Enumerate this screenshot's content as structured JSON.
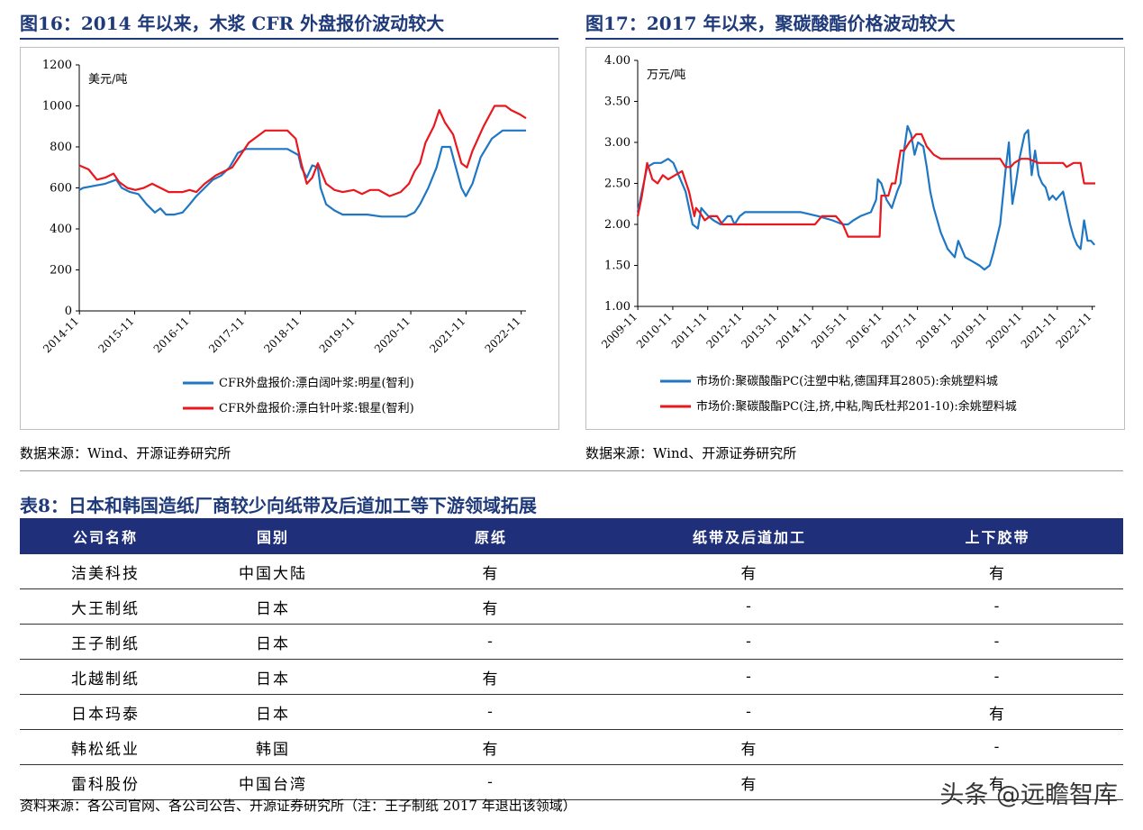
{
  "fig16": {
    "title": "图16：2014 年以来，木浆 CFR 外盘报价波动较大",
    "source": "数据来源：Wind、开源证券研究所"
  },
  "fig17": {
    "title": "图17：2017 年以来，聚碳酸酯价格波动较大",
    "source": "数据来源：Wind、开源证券研究所"
  },
  "chart_data": [
    {
      "type": "line",
      "unit": "美元/吨",
      "ylim": [
        0,
        1200
      ],
      "yticks": [
        "0",
        "200",
        "400",
        "600",
        "800",
        "1000",
        "1200"
      ],
      "xlim": [
        2014.83,
        2022.92
      ],
      "xticks": [
        "2014-11",
        "2015-11",
        "2016-11",
        "2017-11",
        "2018-11",
        "2019-11",
        "2020-11",
        "2021-11",
        "2022-11"
      ],
      "legend_position": "bottom",
      "series": [
        {
          "name": "CFR外盘报价:漂白阔叶浆:明星(智利)",
          "color": "#1f77c4",
          "x": [
            2014.83,
            2014.9,
            2015.1,
            2015.3,
            2015.5,
            2015.6,
            2015.75,
            2015.9,
            2016.05,
            2016.2,
            2016.3,
            2016.4,
            2016.55,
            2016.7,
            2016.83,
            2016.95,
            2017.1,
            2017.25,
            2017.4,
            2017.55,
            2017.7,
            2017.85,
            2018.0,
            2018.3,
            2018.6,
            2018.8,
            2018.85,
            2018.95,
            2019.05,
            2019.15,
            2019.2,
            2019.3,
            2019.45,
            2019.6,
            2019.83,
            2020.05,
            2020.3,
            2020.55,
            2020.75,
            2020.9,
            2021.0,
            2021.15,
            2021.3,
            2021.4,
            2021.55,
            2021.65,
            2021.75,
            2021.83,
            2021.95,
            2022.1,
            2022.3,
            2022.5,
            2022.92
          ],
          "y": [
            590,
            600,
            610,
            620,
            640,
            600,
            580,
            570,
            520,
            480,
            500,
            470,
            470,
            480,
            520,
            560,
            600,
            640,
            660,
            700,
            770,
            790,
            790,
            790,
            790,
            760,
            700,
            650,
            710,
            700,
            600,
            520,
            490,
            470,
            470,
            470,
            460,
            460,
            460,
            480,
            520,
            600,
            700,
            800,
            800,
            700,
            600,
            560,
            620,
            750,
            840,
            880,
            880
          ]
        },
        {
          "name": "CFR外盘报价:漂白针叶浆:银星(智利)",
          "color": "#e8181e",
          "x": [
            2014.83,
            2015.0,
            2015.15,
            2015.3,
            2015.45,
            2015.55,
            2015.7,
            2015.85,
            2016.0,
            2016.15,
            2016.3,
            2016.45,
            2016.55,
            2016.7,
            2016.83,
            2016.95,
            2017.1,
            2017.2,
            2017.3,
            2017.45,
            2017.6,
            2017.75,
            2017.9,
            2018.2,
            2018.6,
            2018.75,
            2018.85,
            2018.95,
            2019.05,
            2019.15,
            2019.3,
            2019.45,
            2019.6,
            2019.8,
            2019.95,
            2020.1,
            2020.25,
            2020.45,
            2020.65,
            2020.8,
            2020.9,
            2021.0,
            2021.1,
            2021.25,
            2021.35,
            2021.45,
            2021.6,
            2021.75,
            2021.85,
            2021.95,
            2022.15,
            2022.35,
            2022.55,
            2022.65,
            2022.8,
            2022.92
          ],
          "y": [
            710,
            690,
            640,
            650,
            670,
            630,
            600,
            590,
            600,
            620,
            600,
            580,
            580,
            580,
            590,
            580,
            620,
            640,
            660,
            680,
            700,
            760,
            820,
            880,
            880,
            840,
            720,
            620,
            650,
            720,
            620,
            590,
            580,
            590,
            570,
            590,
            590,
            560,
            580,
            620,
            680,
            720,
            820,
            900,
            980,
            920,
            860,
            720,
            700,
            780,
            900,
            1000,
            1000,
            980,
            960,
            940
          ]
        }
      ]
    },
    {
      "type": "line",
      "unit": "万元/吨",
      "ylim": [
        1.0,
        4.0
      ],
      "yticks": [
        "1.00",
        "1.50",
        "2.00",
        "2.50",
        "3.00",
        "3.50",
        "4.00"
      ],
      "xlim": [
        2009.83,
        2022.92
      ],
      "xticks": [
        "2009-11",
        "2010-11",
        "2011-11",
        "2012-11",
        "2013-11",
        "2014-11",
        "2015-11",
        "2016-11",
        "2017-11",
        "2018-11",
        "2019-11",
        "2020-11",
        "2021-11",
        "2022-11"
      ],
      "legend_position": "bottom",
      "series": [
        {
          "name": "市场价:聚碳酸酯PC(注塑中粘,德国拜耳2805):余姚塑料城",
          "color": "#1f77c4",
          "x": [
            2009.83,
            2009.95,
            2010.1,
            2010.3,
            2010.5,
            2010.7,
            2010.85,
            2011.0,
            2011.2,
            2011.4,
            2011.55,
            2011.65,
            2011.75,
            2011.85,
            2012.0,
            2012.2,
            2012.4,
            2012.5,
            2012.6,
            2012.75,
            2012.9,
            2013.2,
            2013.6,
            2014.0,
            2014.5,
            2015.0,
            2015.4,
            2015.7,
            2015.85,
            2016.0,
            2016.2,
            2016.5,
            2016.65,
            2016.7,
            2016.8,
            2016.95,
            2017.1,
            2017.25,
            2017.35,
            2017.45,
            2017.55,
            2017.65,
            2017.75,
            2017.85,
            2018.0,
            2018.1,
            2018.2,
            2018.3,
            2018.5,
            2018.7,
            2018.9,
            2019.0,
            2019.2,
            2019.4,
            2019.6,
            2019.75,
            2019.9,
            2020.0,
            2020.2,
            2020.35,
            2020.45,
            2020.55,
            2020.65,
            2020.75,
            2020.9,
            2021.0,
            2021.1,
            2021.2,
            2021.3,
            2021.4,
            2021.5,
            2021.6,
            2021.7,
            2021.8,
            2021.9,
            2022.0,
            2022.1,
            2022.2,
            2022.3,
            2022.4,
            2022.5,
            2022.6,
            2022.7,
            2022.8,
            2022.9
          ],
          "y": [
            2.15,
            2.4,
            2.7,
            2.75,
            2.75,
            2.8,
            2.75,
            2.6,
            2.4,
            2.0,
            1.95,
            2.2,
            2.15,
            2.1,
            2.05,
            2.0,
            2.1,
            2.1,
            2.0,
            2.1,
            2.15,
            2.15,
            2.15,
            2.15,
            2.15,
            2.1,
            2.05,
            2.0,
            2.0,
            2.05,
            2.1,
            2.15,
            2.3,
            2.55,
            2.5,
            2.3,
            2.2,
            2.4,
            2.5,
            2.9,
            3.2,
            3.1,
            2.85,
            3.0,
            2.95,
            2.7,
            2.4,
            2.2,
            1.9,
            1.7,
            1.6,
            1.8,
            1.6,
            1.55,
            1.5,
            1.45,
            1.5,
            1.65,
            2.0,
            2.65,
            3.0,
            2.25,
            2.5,
            2.8,
            3.1,
            3.15,
            2.6,
            2.9,
            2.6,
            2.5,
            2.45,
            2.3,
            2.35,
            2.3,
            2.35,
            2.4,
            2.2,
            2.0,
            1.85,
            1.75,
            1.7,
            2.05,
            1.8,
            1.8,
            1.75
          ]
        },
        {
          "name": "市场价:聚碳酸酯PC(注,挤,中粘,陶氏杜邦201-10):余姚塑料城",
          "color": "#e8181e",
          "x": [
            2009.83,
            2009.95,
            2010.1,
            2010.25,
            2010.4,
            2010.55,
            2010.7,
            2010.9,
            2011.1,
            2011.3,
            2011.45,
            2011.5,
            2011.6,
            2011.75,
            2011.9,
            2012.1,
            2012.25,
            2012.4,
            2012.5,
            2012.9,
            2013.5,
            2014.0,
            2014.5,
            2014.9,
            2015.1,
            2015.5,
            2015.7,
            2015.85,
            2016.0,
            2016.5,
            2016.75,
            2016.8,
            2017.0,
            2017.1,
            2017.2,
            2017.35,
            2017.45,
            2017.6,
            2017.8,
            2017.95,
            2018.1,
            2018.3,
            2018.5,
            2018.8,
            2019.2,
            2019.6,
            2020.0,
            2020.2,
            2020.35,
            2020.5,
            2020.6,
            2020.8,
            2021.0,
            2021.3,
            2021.6,
            2021.9,
            2022.0,
            2022.1,
            2022.3,
            2022.5,
            2022.6,
            2022.75,
            2022.92
          ],
          "y": [
            2.1,
            2.35,
            2.75,
            2.55,
            2.5,
            2.6,
            2.55,
            2.6,
            2.65,
            2.4,
            2.1,
            2.2,
            2.15,
            2.05,
            2.1,
            2.1,
            2.0,
            2.0,
            2.0,
            2.0,
            2.0,
            2.0,
            2.0,
            2.0,
            2.1,
            2.1,
            2.0,
            1.85,
            1.85,
            1.85,
            1.85,
            2.35,
            2.35,
            2.5,
            2.5,
            2.9,
            2.9,
            3.0,
            3.1,
            3.1,
            2.95,
            2.85,
            2.8,
            2.8,
            2.8,
            2.8,
            2.8,
            2.8,
            2.7,
            2.7,
            2.75,
            2.8,
            2.8,
            2.75,
            2.75,
            2.75,
            2.75,
            2.7,
            2.75,
            2.75,
            2.5,
            2.5,
            2.5
          ]
        }
      ]
    }
  ],
  "table": {
    "title": "表8：日本和韩国造纸厂商较少向纸带及后道加工等下游领域拓展",
    "headers": [
      "公司名称",
      "国别",
      "原纸",
      "纸带及后道加工",
      "上下胶带"
    ],
    "rows": [
      [
        "洁美科技",
        "中国大陆",
        "有",
        "有",
        "有"
      ],
      [
        "大王制纸",
        "日本",
        "有",
        "-",
        "-"
      ],
      [
        "王子制纸",
        "日本",
        "-",
        "-",
        "-"
      ],
      [
        "北越制纸",
        "日本",
        "有",
        "-",
        "-"
      ],
      [
        "日本玛泰",
        "日本",
        "-",
        "-",
        "有"
      ],
      [
        "韩松纸业",
        "韩国",
        "有",
        "有",
        "-"
      ],
      [
        "雷科股份",
        "中国台湾",
        "-",
        "有",
        "有"
      ]
    ],
    "source": "资料来源：各公司官网、各公司公告、开源证券研究所（注：王子制纸 2017 年退出该领域）"
  },
  "watermark": "头条 @远瞻智库"
}
